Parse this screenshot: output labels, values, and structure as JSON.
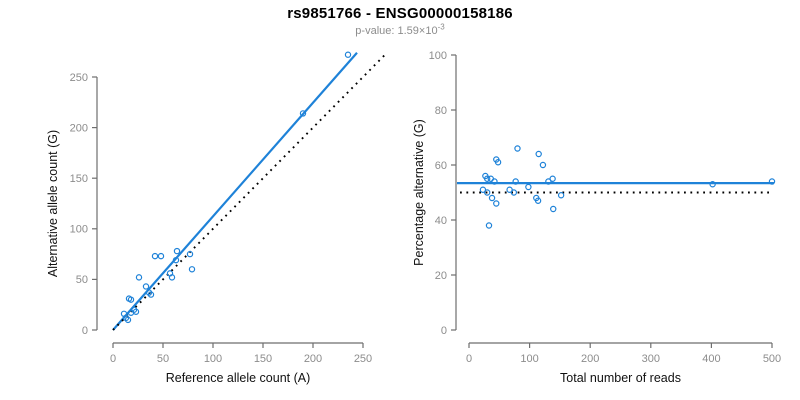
{
  "figure": {
    "title": "rs9851766 - ENSG00000158186",
    "subtitle": {
      "text": "p-value: 1.59×10",
      "exponent": "-3"
    }
  },
  "colors": {
    "accent": "#1e82d8",
    "dotted_line": "#000000",
    "axis_line": "#6e6e6e",
    "tick_label": "#8c8c8c",
    "axis_title": "#111111"
  },
  "chart_data": [
    {
      "type": "scatter",
      "panel": "left",
      "xlabel": "Reference allele count (A)",
      "ylabel": "Alternative allele count (G)",
      "xlim": [
        0,
        250
      ],
      "ylim": [
        0,
        250
      ],
      "xticks": [
        0,
        50,
        100,
        150,
        200,
        250
      ],
      "yticks": [
        0,
        50,
        100,
        150,
        200,
        250
      ],
      "grid": false,
      "points": [
        [
          11,
          16
        ],
        [
          13,
          12
        ],
        [
          15,
          10
        ],
        [
          16,
          31
        ],
        [
          18,
          30
        ],
        [
          18,
          17
        ],
        [
          21,
          20
        ],
        [
          23,
          18
        ],
        [
          26,
          52
        ],
        [
          33,
          43
        ],
        [
          36,
          37
        ],
        [
          38,
          35
        ],
        [
          42,
          73
        ],
        [
          48,
          73
        ],
        [
          57,
          56
        ],
        [
          59,
          52
        ],
        [
          63,
          69
        ],
        [
          64,
          78
        ],
        [
          77,
          75
        ],
        [
          79,
          60
        ],
        [
          190,
          214
        ],
        [
          235,
          272
        ]
      ],
      "lines": [
        {
          "name": "regression-line",
          "style": "solid",
          "color": "accent",
          "from": [
            0,
            0
          ],
          "to": [
            244,
            274
          ]
        },
        {
          "name": "identity-line",
          "style": "dotted",
          "color": "#000000",
          "from": [
            0,
            0
          ],
          "to": [
            272,
            272
          ]
        }
      ]
    },
    {
      "type": "scatter",
      "panel": "right",
      "xlabel": "Total number of reads",
      "ylabel": "Percentage alternative (G)",
      "xlim": [
        0,
        500
      ],
      "ylim": [
        0,
        100
      ],
      "xticks": [
        0,
        100,
        200,
        300,
        400,
        500
      ],
      "yticks": [
        0,
        20,
        40,
        60,
        80,
        100
      ],
      "grid": false,
      "points": [
        [
          23,
          51
        ],
        [
          27,
          56
        ],
        [
          30,
          55
        ],
        [
          30,
          50
        ],
        [
          33,
          38
        ],
        [
          36,
          55
        ],
        [
          38,
          48
        ],
        [
          42,
          54
        ],
        [
          45,
          62
        ],
        [
          45,
          46
        ],
        [
          48,
          61
        ],
        [
          67,
          51
        ],
        [
          74,
          50
        ],
        [
          77,
          54
        ],
        [
          80,
          66
        ],
        [
          98,
          52
        ],
        [
          111,
          48
        ],
        [
          114,
          47
        ],
        [
          115,
          64
        ],
        [
          122,
          60
        ],
        [
          131,
          54
        ],
        [
          138,
          55
        ],
        [
          139,
          44
        ],
        [
          152,
          49
        ],
        [
          402,
          53
        ],
        [
          500,
          54
        ]
      ],
      "lines": [
        {
          "name": "mean-line",
          "style": "solid",
          "color": "accent",
          "horizontal_y": 53.4
        },
        {
          "name": "expected-line",
          "style": "dotted",
          "color": "#000000",
          "horizontal_y": 50
        }
      ]
    }
  ]
}
